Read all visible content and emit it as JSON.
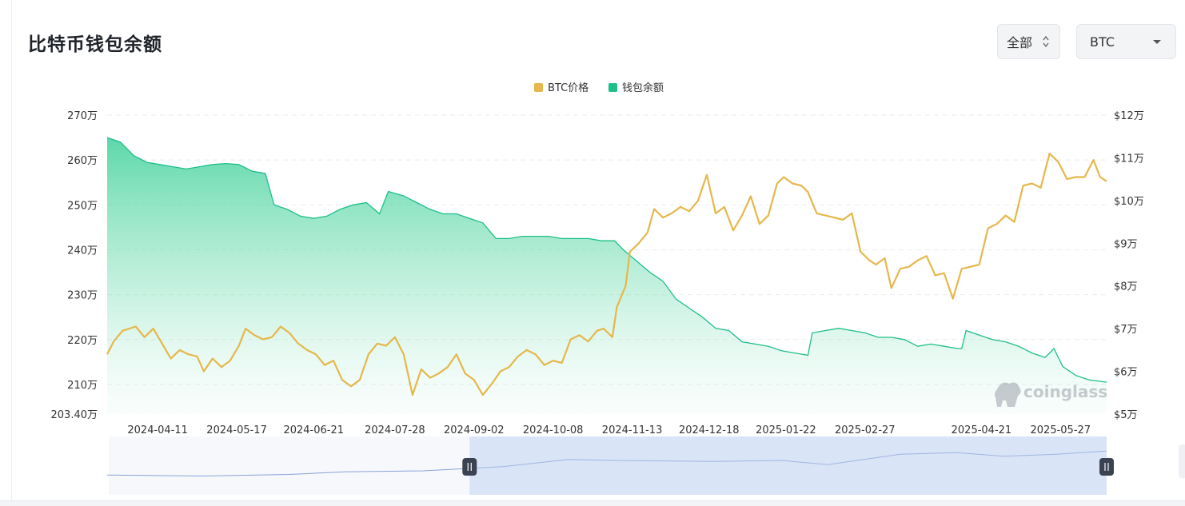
{
  "page": {
    "title": "比特币钱包余额"
  },
  "controls": {
    "range_label": "全部",
    "coin_label": "BTC"
  },
  "watermark": "coinglass",
  "chart_data": {
    "type": "line",
    "legend": {
      "position": "top-center"
    },
    "series": [
      {
        "name": "BTC价格",
        "color": "#e6b74a",
        "axis": "right"
      },
      {
        "name": "钱包余额",
        "color": "#1dbf8a",
        "axis": "left",
        "fill": "gradient-area"
      }
    ],
    "x_range": [
      "2024-03-19",
      "2025-06-17"
    ],
    "x_tick_labels": [
      "2024-04-11",
      "2024-05-17",
      "2024-06-21",
      "2024-07-28",
      "2024-09-02",
      "2024-10-08",
      "2024-11-13",
      "2024-12-18",
      "2025-01-22",
      "2025-02-27",
      "2025-04-21",
      "2025-05-27"
    ],
    "left_axis": {
      "min": 2034000,
      "max": 2700000,
      "ticks": [
        2700000,
        2600000,
        2500000,
        2400000,
        2300000,
        2200000,
        2100000
      ],
      "tick_labels": [
        "270万",
        "260万",
        "250万",
        "240万",
        "230万",
        "220万",
        "210万"
      ],
      "min_label": "203.40万"
    },
    "right_axis": {
      "min": 50000,
      "max": 120000,
      "ticks": [
        120000,
        110000,
        100000,
        90000,
        80000,
        70000,
        60000,
        50000
      ],
      "tick_labels": [
        "$12万",
        "$11万",
        "$10万",
        "$9万",
        "$8万",
        "$7万",
        "$6万",
        "$5万"
      ]
    },
    "grid": "horizontal-dashed",
    "wallet_balance": [
      [
        "2024-03-19",
        2650000
      ],
      [
        "2024-03-25",
        2640000
      ],
      [
        "2024-03-31",
        2610000
      ],
      [
        "2024-04-06",
        2595000
      ],
      [
        "2024-04-12",
        2590000
      ],
      [
        "2024-04-18",
        2585000
      ],
      [
        "2024-04-24",
        2580000
      ],
      [
        "2024-04-30",
        2585000
      ],
      [
        "2024-05-06",
        2590000
      ],
      [
        "2024-05-12",
        2592000
      ],
      [
        "2024-05-18",
        2590000
      ],
      [
        "2024-05-24",
        2575000
      ],
      [
        "2024-05-30",
        2570000
      ],
      [
        "2024-06-03",
        2500000
      ],
      [
        "2024-06-09",
        2490000
      ],
      [
        "2024-06-15",
        2475000
      ],
      [
        "2024-06-21",
        2470000
      ],
      [
        "2024-06-27",
        2475000
      ],
      [
        "2024-07-03",
        2490000
      ],
      [
        "2024-07-09",
        2500000
      ],
      [
        "2024-07-15",
        2505000
      ],
      [
        "2024-07-21",
        2480000
      ],
      [
        "2024-07-25",
        2530000
      ],
      [
        "2024-08-01",
        2520000
      ],
      [
        "2024-08-07",
        2505000
      ],
      [
        "2024-08-13",
        2490000
      ],
      [
        "2024-08-19",
        2480000
      ],
      [
        "2024-08-25",
        2480000
      ],
      [
        "2024-08-31",
        2470000
      ],
      [
        "2024-09-06",
        2460000
      ],
      [
        "2024-09-12",
        2425000
      ],
      [
        "2024-09-18",
        2425000
      ],
      [
        "2024-09-24",
        2430000
      ],
      [
        "2024-09-30",
        2430000
      ],
      [
        "2024-10-06",
        2430000
      ],
      [
        "2024-10-12",
        2425000
      ],
      [
        "2024-10-18",
        2425000
      ],
      [
        "2024-10-24",
        2425000
      ],
      [
        "2024-10-30",
        2420000
      ],
      [
        "2024-11-05",
        2420000
      ],
      [
        "2024-11-09",
        2400000
      ],
      [
        "2024-11-15",
        2375000
      ],
      [
        "2024-11-21",
        2350000
      ],
      [
        "2024-11-27",
        2330000
      ],
      [
        "2024-12-03",
        2290000
      ],
      [
        "2024-12-09",
        2270000
      ],
      [
        "2024-12-15",
        2250000
      ],
      [
        "2024-12-21",
        2225000
      ],
      [
        "2024-12-27",
        2220000
      ],
      [
        "2025-01-02",
        2195000
      ],
      [
        "2025-01-08",
        2190000
      ],
      [
        "2025-01-14",
        2185000
      ],
      [
        "2025-01-20",
        2175000
      ],
      [
        "2025-01-26",
        2170000
      ],
      [
        "2025-02-01",
        2165000
      ],
      [
        "2025-02-03",
        2215000
      ],
      [
        "2025-02-09",
        2220000
      ],
      [
        "2025-02-15",
        2225000
      ],
      [
        "2025-02-21",
        2220000
      ],
      [
        "2025-02-27",
        2215000
      ],
      [
        "2025-03-05",
        2205000
      ],
      [
        "2025-03-11",
        2205000
      ],
      [
        "2025-03-17",
        2200000
      ],
      [
        "2025-03-23",
        2185000
      ],
      [
        "2025-03-29",
        2190000
      ],
      [
        "2025-04-04",
        2185000
      ],
      [
        "2025-04-10",
        2180000
      ],
      [
        "2025-04-12",
        2180000
      ],
      [
        "2025-04-14",
        2220000
      ],
      [
        "2025-04-20",
        2210000
      ],
      [
        "2025-04-26",
        2200000
      ],
      [
        "2025-05-02",
        2195000
      ],
      [
        "2025-05-08",
        2185000
      ],
      [
        "2025-05-14",
        2170000
      ],
      [
        "2025-05-20",
        2160000
      ],
      [
        "2025-05-24",
        2180000
      ],
      [
        "2025-05-28",
        2140000
      ],
      [
        "2025-06-03",
        2120000
      ],
      [
        "2025-06-09",
        2110000
      ],
      [
        "2025-06-17",
        2105000
      ]
    ],
    "btc_price": [
      [
        "2024-03-19",
        64000
      ],
      [
        "2024-03-22",
        67000
      ],
      [
        "2024-03-26",
        69500
      ],
      [
        "2024-04-01",
        70500
      ],
      [
        "2024-04-05",
        68000
      ],
      [
        "2024-04-09",
        70000
      ],
      [
        "2024-04-13",
        66500
      ],
      [
        "2024-04-17",
        63000
      ],
      [
        "2024-04-21",
        65000
      ],
      [
        "2024-04-25",
        64000
      ],
      [
        "2024-04-29",
        63500
      ],
      [
        "2024-05-02",
        60000
      ],
      [
        "2024-05-06",
        63000
      ],
      [
        "2024-05-10",
        61000
      ],
      [
        "2024-05-14",
        62500
      ],
      [
        "2024-05-18",
        66000
      ],
      [
        "2024-05-21",
        70000
      ],
      [
        "2024-05-25",
        68500
      ],
      [
        "2024-05-29",
        67500
      ],
      [
        "2024-06-02",
        68000
      ],
      [
        "2024-06-06",
        70500
      ],
      [
        "2024-06-10",
        69000
      ],
      [
        "2024-06-14",
        66500
      ],
      [
        "2024-06-18",
        65000
      ],
      [
        "2024-06-22",
        64000
      ],
      [
        "2024-06-26",
        61500
      ],
      [
        "2024-06-30",
        62500
      ],
      [
        "2024-07-04",
        58000
      ],
      [
        "2024-07-08",
        56500
      ],
      [
        "2024-07-12",
        58000
      ],
      [
        "2024-07-16",
        64000
      ],
      [
        "2024-07-20",
        66500
      ],
      [
        "2024-07-24",
        66000
      ],
      [
        "2024-07-28",
        68000
      ],
      [
        "2024-08-01",
        64000
      ],
      [
        "2024-08-05",
        54500
      ],
      [
        "2024-08-09",
        60500
      ],
      [
        "2024-08-13",
        58500
      ],
      [
        "2024-08-17",
        59500
      ],
      [
        "2024-08-21",
        61000
      ],
      [
        "2024-08-25",
        64000
      ],
      [
        "2024-08-29",
        59500
      ],
      [
        "2024-09-02",
        58000
      ],
      [
        "2024-09-06",
        54500
      ],
      [
        "2024-09-10",
        57000
      ],
      [
        "2024-09-14",
        60000
      ],
      [
        "2024-09-18",
        61000
      ],
      [
        "2024-09-22",
        63500
      ],
      [
        "2024-09-26",
        65000
      ],
      [
        "2024-09-30",
        64000
      ],
      [
        "2024-10-04",
        61500
      ],
      [
        "2024-10-08",
        62500
      ],
      [
        "2024-10-12",
        62000
      ],
      [
        "2024-10-16",
        67500
      ],
      [
        "2024-10-20",
        68500
      ],
      [
        "2024-10-24",
        67000
      ],
      [
        "2024-10-28",
        69500
      ],
      [
        "2024-10-31",
        70000
      ],
      [
        "2024-11-04",
        68000
      ],
      [
        "2024-11-06",
        75000
      ],
      [
        "2024-11-10",
        80000
      ],
      [
        "2024-11-12",
        88000
      ],
      [
        "2024-11-16",
        90000
      ],
      [
        "2024-11-20",
        92500
      ],
      [
        "2024-11-23",
        98000
      ],
      [
        "2024-11-27",
        96000
      ],
      [
        "2024-12-01",
        97000
      ],
      [
        "2024-12-05",
        98500
      ],
      [
        "2024-12-09",
        97500
      ],
      [
        "2024-12-13",
        100000
      ],
      [
        "2024-12-17",
        106000
      ],
      [
        "2024-12-21",
        97000
      ],
      [
        "2024-12-25",
        98500
      ],
      [
        "2024-12-29",
        93000
      ],
      [
        "2025-01-02",
        96500
      ],
      [
        "2025-01-06",
        101000
      ],
      [
        "2025-01-10",
        94500
      ],
      [
        "2025-01-14",
        96500
      ],
      [
        "2025-01-18",
        104000
      ],
      [
        "2025-01-21",
        105500
      ],
      [
        "2025-01-25",
        104000
      ],
      [
        "2025-01-29",
        103500
      ],
      [
        "2025-02-01",
        102000
      ],
      [
        "2025-02-05",
        97000
      ],
      [
        "2025-02-09",
        96500
      ],
      [
        "2025-02-13",
        96000
      ],
      [
        "2025-02-17",
        95500
      ],
      [
        "2025-02-21",
        97000
      ],
      [
        "2025-02-25",
        88000
      ],
      [
        "2025-03-01",
        86000
      ],
      [
        "2025-03-04",
        85000
      ],
      [
        "2025-03-08",
        86500
      ],
      [
        "2025-03-11",
        79500
      ],
      [
        "2025-03-15",
        84000
      ],
      [
        "2025-03-19",
        84500
      ],
      [
        "2025-03-23",
        86000
      ],
      [
        "2025-03-27",
        87000
      ],
      [
        "2025-03-31",
        82500
      ],
      [
        "2025-04-04",
        83000
      ],
      [
        "2025-04-08",
        77000
      ],
      [
        "2025-04-12",
        84000
      ],
      [
        "2025-04-16",
        84500
      ],
      [
        "2025-04-20",
        85000
      ],
      [
        "2025-04-24",
        93500
      ],
      [
        "2025-04-28",
        94500
      ],
      [
        "2025-05-02",
        96500
      ],
      [
        "2025-05-06",
        95000
      ],
      [
        "2025-05-10",
        103500
      ],
      [
        "2025-05-14",
        104000
      ],
      [
        "2025-05-18",
        103000
      ],
      [
        "2025-05-22",
        111000
      ],
      [
        "2025-05-26",
        109000
      ],
      [
        "2025-05-30",
        105000
      ],
      [
        "2025-06-03",
        105500
      ],
      [
        "2025-06-07",
        105500
      ],
      [
        "2025-06-11",
        109500
      ],
      [
        "2025-06-14",
        105500
      ],
      [
        "2025-06-17",
        104500
      ]
    ],
    "navigator": {
      "series": [
        [
          "2024-03-19",
          0.32
        ],
        [
          "2024-05-01",
          0.3
        ],
        [
          "2024-06-10",
          0.33
        ],
        [
          "2024-07-05",
          0.38
        ],
        [
          "2024-08-10",
          0.4
        ],
        [
          "2024-09-15",
          0.48
        ],
        [
          "2024-10-15",
          0.62
        ],
        [
          "2024-11-05",
          0.6
        ],
        [
          "2024-12-20",
          0.58
        ],
        [
          "2025-01-20",
          0.6
        ],
        [
          "2025-02-10",
          0.52
        ],
        [
          "2025-03-15",
          0.72
        ],
        [
          "2025-04-10",
          0.75
        ],
        [
          "2025-05-01",
          0.68
        ],
        [
          "2025-05-25",
          0.72
        ],
        [
          "2025-06-17",
          0.78
        ]
      ],
      "window_start": "2024-08-31",
      "window_end": "2025-06-17"
    }
  }
}
